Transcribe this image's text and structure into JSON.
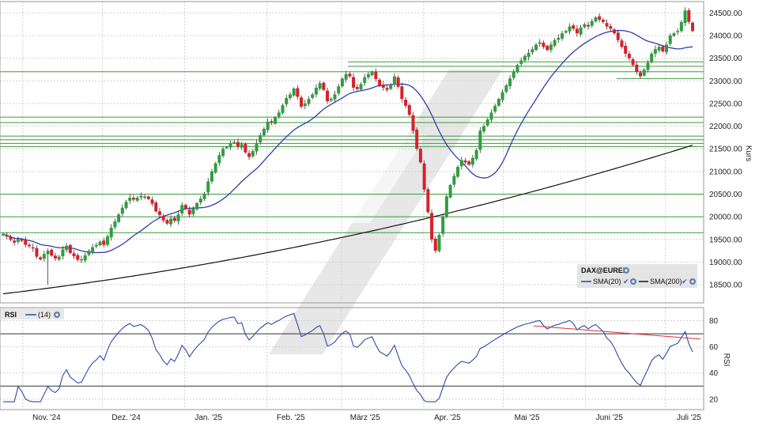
{
  "chart_data": [
    {
      "type": "candlestick",
      "instrument": "DAX@EUREX",
      "ylabel": "Kurs",
      "ylim": [
        18100,
        24750
      ],
      "y_ticks": [
        "18500.00",
        "19000.00",
        "19500.00",
        "20000.00",
        "20500.00",
        "21000.00",
        "21500.00",
        "22000.00",
        "22500.00",
        "23000.00",
        "23500.00",
        "24000.00",
        "24500.00"
      ],
      "x_ticks": [
        "Nov. '24",
        "Dez. '24",
        "Jan. '25",
        "Feb. '25",
        "März '25",
        "Apr. '25",
        "Mai '25",
        "Juni '25",
        "Juli '25"
      ],
      "date_range": [
        "2024-10-24",
        "2025-07-11"
      ],
      "grid": true,
      "legend": {
        "position": "bottom-right",
        "title": "DAX@EUREX",
        "entries": [
          {
            "label": "SMA(20)",
            "color": "#2f3fa8"
          },
          {
            "label": "SMA(200)",
            "color": "#111111"
          }
        ]
      },
      "colors": {
        "up": "#2e9e3e",
        "down": "#d8202a",
        "sma20": "#2f3fa8",
        "sma200": "#111111",
        "levels": "#3a9a3a",
        "watermark": "#d4d4d4"
      },
      "closes": [
        19620,
        19560,
        19490,
        19430,
        19510,
        19470,
        19380,
        19350,
        19300,
        19120,
        19060,
        19180,
        19250,
        19140,
        19080,
        19120,
        19280,
        19360,
        19200,
        19130,
        19050,
        19060,
        19150,
        19250,
        19330,
        19380,
        19450,
        19380,
        19570,
        19760,
        19900,
        20050,
        20200,
        20330,
        20420,
        20380,
        20420,
        20460,
        20430,
        20390,
        20290,
        20120,
        20040,
        19920,
        19850,
        19960,
        19910,
        20050,
        20260,
        20180,
        20050,
        20180,
        20300,
        20400,
        20510,
        20780,
        21000,
        21180,
        21360,
        21500,
        21540,
        21620,
        21650,
        21550,
        21600,
        21420,
        21320,
        21450,
        21620,
        21800,
        21940,
        22100,
        22070,
        22200,
        22300,
        22460,
        22620,
        22700,
        22830,
        22650,
        22430,
        22500,
        22600,
        22700,
        22850,
        22950,
        22800,
        22550,
        22600,
        22700,
        22880,
        23050,
        23150,
        23100,
        22850,
        22820,
        22930,
        23080,
        23150,
        23200,
        23040,
        22900,
        22850,
        22800,
        22920,
        23100,
        22870,
        22600,
        22450,
        22250,
        21900,
        21500,
        21200,
        20600,
        20100,
        19500,
        19250,
        19600,
        20000,
        20450,
        20700,
        20900,
        21100,
        21250,
        21200,
        21150,
        21300,
        21470,
        21900,
        22000,
        22150,
        22300,
        22450,
        22600,
        22750,
        22900,
        23050,
        23200,
        23350,
        23450,
        23550,
        23620,
        23700,
        23800,
        23850,
        23750,
        23680,
        23800,
        23900,
        23950,
        24050,
        24100,
        24200,
        24150,
        24050,
        24180,
        24250,
        24200,
        24320,
        24400,
        24350,
        24300,
        24200,
        24150,
        24050,
        23900,
        23750,
        23600,
        23500,
        23350,
        23200,
        23100,
        23250,
        23400,
        23600,
        23700,
        23750,
        23650,
        23800,
        24000,
        24050,
        24100,
        24300,
        24550,
        24300,
        24100
      ],
      "sma20_end": 23780,
      "sma200_end": 21580,
      "horizontal_levels": [
        23420,
        23320,
        23200,
        23050,
        22200,
        22080,
        21780,
        21700,
        21620,
        21550,
        20500,
        20000,
        19650
      ]
    },
    {
      "type": "line",
      "ylabel": "RSI",
      "ylim": [
        12,
        90
      ],
      "y_ticks": [
        "20",
        "40",
        "60",
        "80"
      ],
      "reference_lines": [
        70,
        30
      ],
      "series": [
        {
          "name": "(14)",
          "color": "#2f4aa8"
        }
      ],
      "trendline": {
        "color": "#e03030",
        "from": 76,
        "to": 66
      }
    }
  ],
  "labels": {
    "price_axis_title": "Kurs",
    "rsi_axis_title": "RSI",
    "rsi_title": "RSI",
    "rsi_param": "(14)",
    "legend_title": "DAX@EUREX",
    "legend_sma20": "SMA(20)",
    "legend_sma200": "SMA(200)"
  },
  "icons": [
    "settings-gear-icon",
    "checkmark-icon"
  ]
}
